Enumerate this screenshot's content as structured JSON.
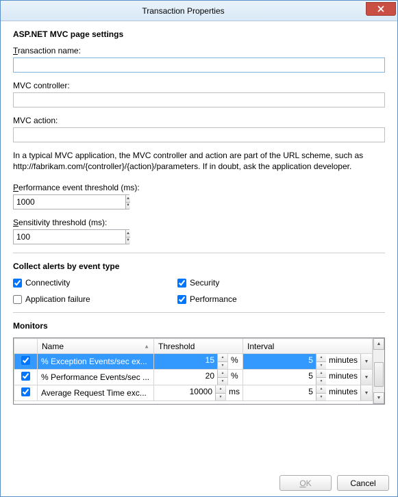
{
  "window": {
    "title": "Transaction Properties"
  },
  "section_pageSettings": {
    "title": "ASP.NET MVC page settings",
    "transactionName": {
      "label": "Transaction name:",
      "value": ""
    },
    "mvcController": {
      "label": "MVC controller:",
      "value": ""
    },
    "mvcAction": {
      "label": "MVC action:",
      "value": ""
    },
    "helpText": "In a typical MVC application, the MVC controller and action are part of the URL scheme, such as http://fabrikam.com/{controller}/{action}/parameters. If in doubt, ask the application developer.",
    "perfThreshold": {
      "label": "Performance event threshold (ms):",
      "value": "1000"
    },
    "sensitivity": {
      "label": "Sensitivity threshold (ms):",
      "value": "100"
    }
  },
  "section_alerts": {
    "title": "Collect alerts by event type",
    "connectivity": {
      "label": "Connectivity",
      "checked": true
    },
    "security": {
      "label": "Security",
      "checked": true
    },
    "appFailure": {
      "label": "Application failure",
      "checked": false
    },
    "performance": {
      "label": "Performance",
      "checked": true
    }
  },
  "section_monitors": {
    "title": "Monitors",
    "columns": {
      "c0": "",
      "c1": "Name",
      "c2": "Threshold",
      "c3": "Interval"
    },
    "rows": [
      {
        "checked": true,
        "name": "% Exception Events/sec ex...",
        "threshold": "15",
        "unit": "%",
        "interval": "5",
        "intervalUnit": "minutes",
        "selected": true
      },
      {
        "checked": true,
        "name": "% Performance Events/sec ...",
        "threshold": "20",
        "unit": "%",
        "interval": "5",
        "intervalUnit": "minutes",
        "selected": false
      },
      {
        "checked": true,
        "name": "Average Request Time exc...",
        "threshold": "10000",
        "unit": "ms",
        "interval": "5",
        "intervalUnit": "minutes",
        "selected": false
      }
    ]
  },
  "buttons": {
    "ok": "OK",
    "cancel": "Cancel"
  }
}
